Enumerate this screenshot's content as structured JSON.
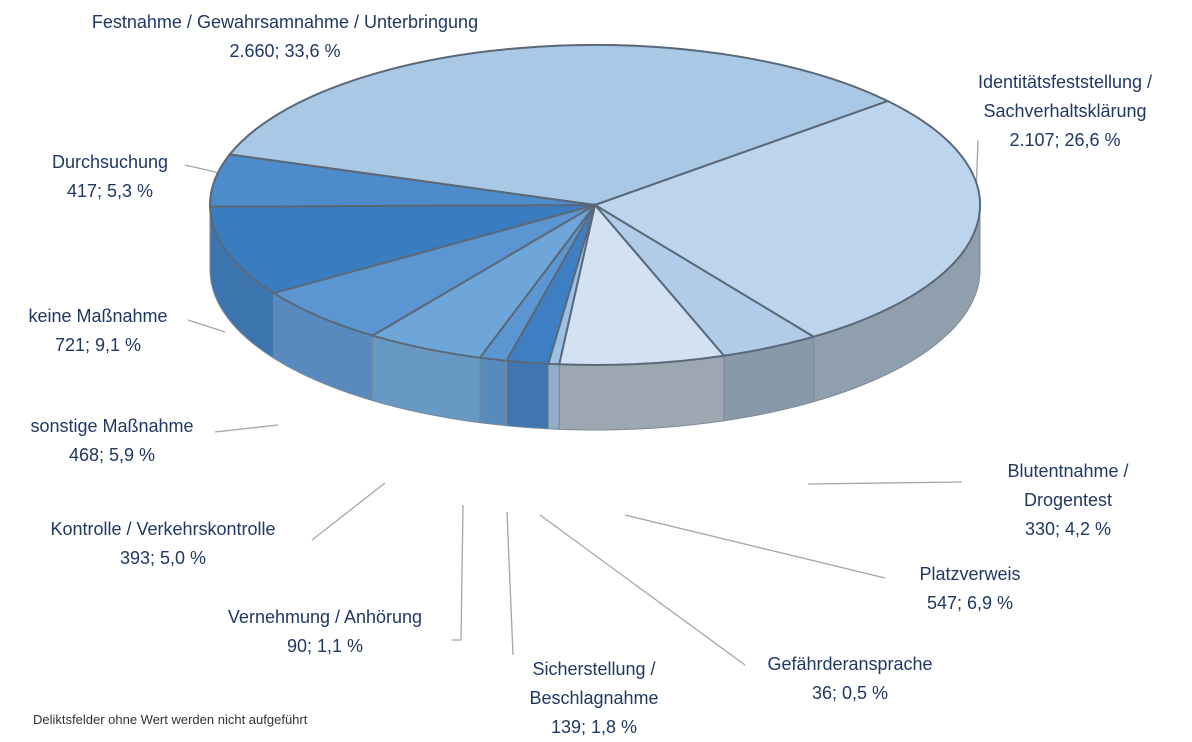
{
  "chart_data": {
    "type": "pie3d",
    "categories": [
      "Festnahme / Gewahrsamnahme / Unterbringung",
      "Identitätsfeststellung / Sachverhaltsklärung",
      "Blutentnahme / Drogentest",
      "Platzverweis",
      "Gefährderansprache",
      "Sicherstellung / Beschlagnahme",
      "Vernehmung / Anhörung",
      "Kontrolle / Verkehrskontrolle",
      "sonstige Maßnahme",
      "keine Maßnahme",
      "Durchsuchung"
    ],
    "values": [
      2660,
      2107,
      330,
      547,
      36,
      139,
      90,
      393,
      468,
      721,
      417
    ],
    "value_labels": [
      "2.660; 33,6 %",
      "2.107; 26,6 %",
      "330; 4,2 %",
      "547; 6,9 %",
      "36; 0,5 %",
      "139; 1,8 %",
      "90; 1,1 %",
      "393; 5,0 %",
      "468; 5,9 %",
      "721; 9,1 %",
      "417; 5,3 %"
    ],
    "colors": [
      "#a9c8e6",
      "#bcd5ec",
      "#b0cce8",
      "#d3e2f2",
      "#9dc0e4",
      "#3e7fc4",
      "#5b96d2",
      "#6ea6da",
      "#5b96d2",
      "#3a7cc0",
      "#4d8bcb"
    ],
    "note": "Deliktsfelder ohne Wert werden nicht aufgeführt"
  }
}
